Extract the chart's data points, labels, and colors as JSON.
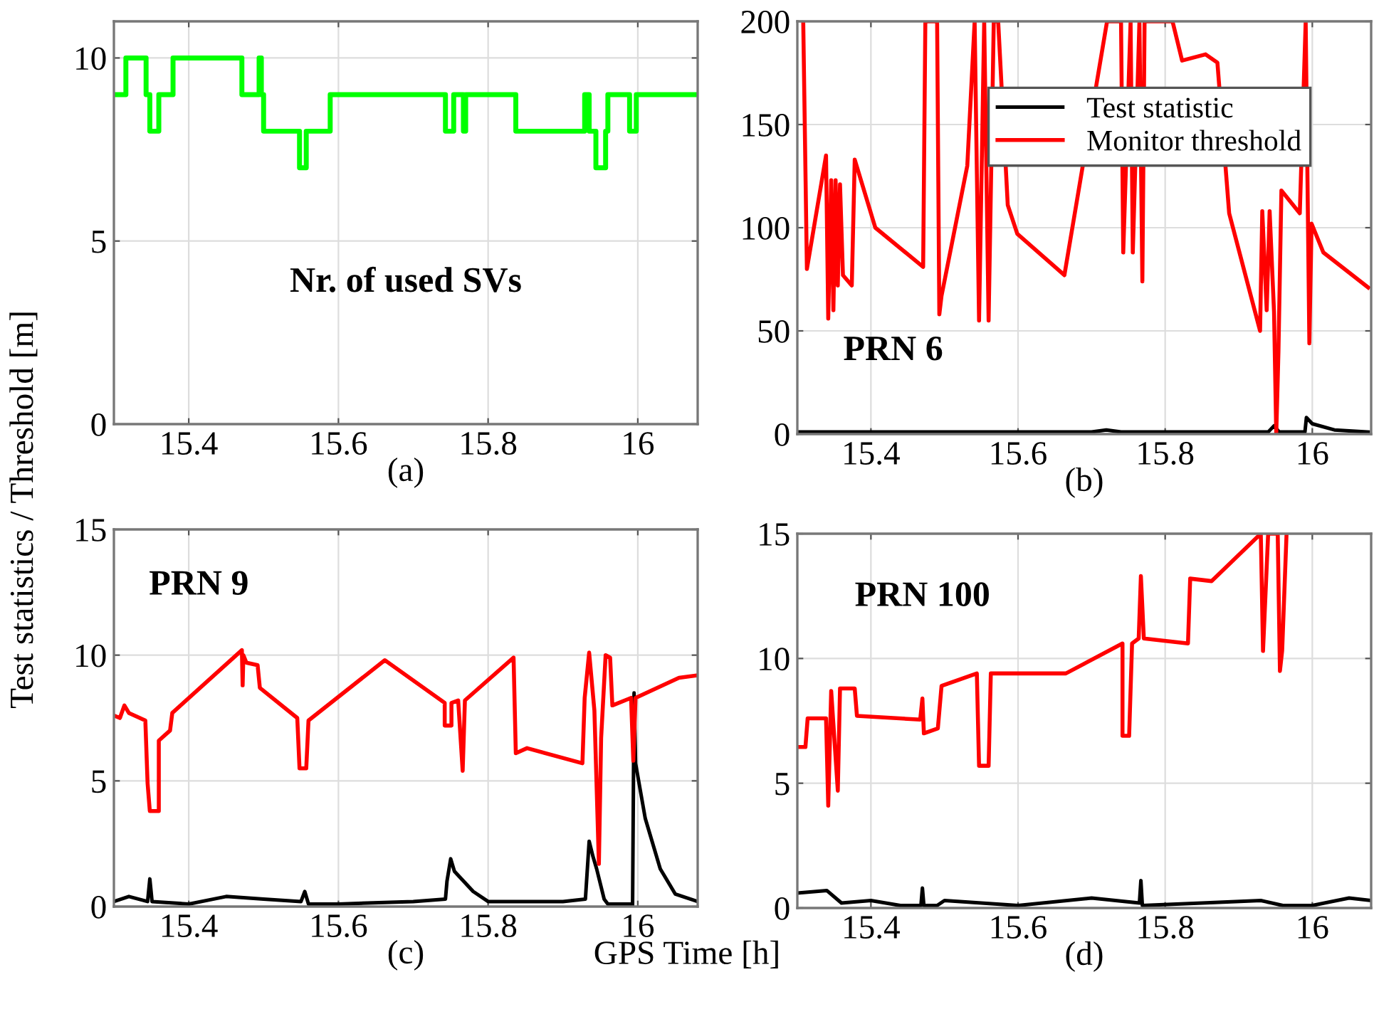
{
  "chart_data": [
    {
      "type": "line",
      "xlabel": "(a)",
      "annotations": [
        "Nr. of used SVs"
      ],
      "xlim": [
        15.3,
        16.08
      ],
      "xticks": [
        15.4,
        15.6,
        15.8,
        16
      ],
      "ylim": [
        0,
        11
      ],
      "yticks": [
        0,
        5,
        10
      ],
      "grid": true,
      "legend": false,
      "series": [
        {
          "color": "#00ff00",
          "x": [
            15.3,
            15.316,
            15.316,
            15.343,
            15.343,
            15.348,
            15.348,
            15.36,
            15.36,
            15.379,
            15.379,
            15.471,
            15.471,
            15.494,
            15.494,
            15.497,
            15.497,
            15.5,
            15.5,
            15.548,
            15.548,
            15.557,
            15.557,
            15.589,
            15.589,
            15.743,
            15.743,
            15.754,
            15.754,
            15.767,
            15.767,
            15.77,
            15.77,
            15.837,
            15.837,
            15.929,
            15.929,
            15.935,
            15.935,
            15.944,
            15.944,
            15.957,
            15.957,
            15.96,
            15.96,
            15.989,
            15.989,
            15.998,
            15.998,
            16.08
          ],
          "values": [
            9,
            9,
            10,
            10,
            9,
            9,
            8,
            8,
            9,
            9,
            10,
            10,
            9,
            9,
            10,
            10,
            9,
            9,
            8,
            8,
            7,
            7,
            8,
            8,
            9,
            9,
            8,
            8,
            9,
            9,
            8,
            8,
            9,
            9,
            8,
            8,
            9,
            9,
            8,
            8,
            7,
            7,
            8,
            8,
            9,
            9,
            8,
            8,
            9,
            9
          ]
        }
      ]
    },
    {
      "type": "line",
      "annotations": [
        "PRN 6"
      ],
      "xlabel": "(b)",
      "xlim": [
        15.3,
        16.08
      ],
      "xticks": [
        15.4,
        15.6,
        15.8,
        16
      ],
      "ylim": [
        0,
        200
      ],
      "yticks": [
        0,
        50,
        100,
        150,
        200
      ],
      "grid": true,
      "legend": "top right",
      "series": [
        {
          "name": "Test statistic",
          "color": "#000000",
          "x": [
            15.3,
            15.4,
            15.5,
            15.6,
            15.7,
            15.72,
            15.74,
            15.8,
            15.9,
            15.94,
            15.948,
            15.955,
            15.99,
            15.992,
            16.0,
            16.03,
            16.076
          ],
          "values": [
            1,
            1,
            1,
            1,
            1,
            2,
            1,
            1,
            1,
            1,
            4,
            1,
            1,
            8,
            5,
            2,
            1
          ]
        },
        {
          "name": "Monitor threshold",
          "color": "#ff0000",
          "x": [
            15.308,
            15.313,
            15.339,
            15.342,
            15.346,
            15.349,
            15.352,
            15.355,
            15.358,
            15.362,
            15.374,
            15.378,
            15.406,
            15.471,
            15.474,
            15.49,
            15.493,
            15.496,
            15.531,
            15.541,
            15.547,
            15.554,
            15.56,
            15.567,
            15.573,
            15.586,
            15.599,
            15.663,
            15.721,
            15.74,
            15.743,
            15.753,
            15.756,
            15.765,
            15.769,
            15.772,
            15.81,
            15.823,
            15.855,
            15.871,
            15.887,
            15.929,
            15.932,
            15.938,
            15.942,
            15.948,
            15.951,
            15.954,
            15.958,
            15.983,
            15.991,
            15.996,
            15.999,
            16.015,
            16.076
          ],
          "values": [
            200,
            80,
            135,
            56,
            123,
            60,
            123,
            72,
            121,
            77,
            72,
            133,
            100,
            81,
            200,
            200,
            58,
            67,
            130,
            200,
            55,
            200,
            55,
            200,
            200,
            111,
            97,
            77,
            200,
            200,
            88,
            200,
            88,
            200,
            74,
            200,
            200,
            181,
            184,
            180,
            107,
            50,
            108,
            60,
            108,
            59,
            0,
            40,
            118,
            107,
            200,
            44,
            102,
            88,
            71
          ]
        }
      ]
    },
    {
      "type": "line",
      "annotations": [
        "PRN 9",
        "GPS Time [h]"
      ],
      "xlabel": "(c)",
      "ylabel": "Test statistics / Threshold [m]",
      "xlim": [
        15.3,
        16.08
      ],
      "xticks": [
        15.4,
        15.6,
        15.8,
        16
      ],
      "ylim": [
        0,
        15
      ],
      "yticks": [
        0,
        5,
        10,
        15
      ],
      "grid": true,
      "legend": false,
      "series": [
        {
          "color": "#000000",
          "x": [
            15.3,
            15.32,
            15.345,
            15.348,
            15.351,
            15.4,
            15.45,
            15.5,
            15.55,
            15.555,
            15.56,
            15.6,
            15.7,
            15.743,
            15.745,
            15.75,
            15.755,
            15.78,
            15.8,
            15.9,
            15.93,
            15.935,
            15.94,
            15.945,
            15.955,
            15.96,
            15.99,
            15.993,
            15.995,
            15.997,
            16.01,
            16.03,
            16.05,
            16.08
          ],
          "values": [
            0.2,
            0.4,
            0.2,
            1.1,
            0.2,
            0.1,
            0.4,
            0.3,
            0.2,
            0.6,
            0.1,
            0.1,
            0.2,
            0.3,
            1.0,
            1.9,
            1.4,
            0.6,
            0.2,
            0.2,
            0.3,
            2.6,
            2.0,
            1.5,
            0.3,
            0.1,
            0.1,
            0.0,
            8.5,
            5.7,
            3.5,
            1.5,
            0.5,
            0.2
          ]
        },
        {
          "color": "#ff0000",
          "x": [
            15.3,
            15.308,
            15.314,
            15.32,
            15.342,
            15.345,
            15.348,
            15.36,
            15.36,
            15.375,
            15.378,
            15.471,
            15.472,
            15.473,
            15.477,
            15.492,
            15.495,
            15.545,
            15.548,
            15.557,
            15.56,
            15.662,
            15.742,
            15.742,
            15.751,
            15.751,
            15.76,
            15.766,
            15.769,
            15.834,
            15.837,
            15.852,
            15.926,
            15.929,
            15.935,
            15.942,
            15.948,
            15.951,
            15.957,
            15.963,
            15.966,
            15.991,
            15.994,
            15.997,
            16.055,
            16.08
          ],
          "values": [
            7.6,
            7.5,
            8.0,
            7.7,
            7.4,
            4.9,
            3.8,
            3.8,
            6.6,
            7.0,
            7.7,
            10.2,
            8.8,
            10.0,
            9.7,
            9.6,
            8.7,
            7.5,
            5.5,
            5.5,
            7.4,
            9.8,
            8.1,
            7.2,
            7.2,
            8.1,
            8.2,
            5.4,
            8.2,
            9.9,
            6.1,
            6.3,
            5.7,
            8.3,
            10.1,
            7.8,
            1.7,
            6.7,
            10.0,
            9.9,
            8.0,
            8.3,
            5.8,
            8.3,
            9.1,
            9.2
          ]
        }
      ]
    },
    {
      "type": "line",
      "annotations": [
        "PRN 100"
      ],
      "xlabel": "(d)",
      "xlim": [
        15.3,
        16.08
      ],
      "xticks": [
        15.4,
        15.6,
        15.8,
        16
      ],
      "ylim": [
        0,
        15
      ],
      "yticks": [
        0,
        5,
        10,
        15
      ],
      "grid": true,
      "legend": false,
      "series": [
        {
          "color": "#000000",
          "x": [
            15.3,
            15.34,
            15.36,
            15.4,
            15.44,
            15.468,
            15.47,
            15.472,
            15.49,
            15.5,
            15.6,
            15.7,
            15.765,
            15.767,
            15.769,
            15.85,
            15.93,
            15.96,
            16.0,
            16.05,
            16.08
          ],
          "values": [
            0.6,
            0.7,
            0.2,
            0.3,
            0.1,
            0.1,
            0.8,
            0.1,
            0.1,
            0.3,
            0.1,
            0.4,
            0.2,
            1.1,
            0.1,
            0.2,
            0.3,
            0.1,
            0.1,
            0.4,
            0.3
          ]
        },
        {
          "color": "#ff0000",
          "x": [
            15.3,
            15.311,
            15.314,
            15.339,
            15.342,
            15.346,
            15.355,
            15.358,
            15.378,
            15.381,
            15.467,
            15.47,
            15.472,
            15.491,
            15.496,
            15.544,
            15.547,
            15.56,
            15.563,
            15.665,
            15.742,
            15.742,
            15.751,
            15.755,
            15.764,
            15.767,
            15.771,
            15.831,
            15.834,
            15.863,
            15.93,
            15.933,
            15.94,
            15.953,
            15.956,
            15.959,
            15.965
          ],
          "values": [
            6.45,
            6.45,
            7.6,
            7.6,
            4.1,
            8.7,
            4.7,
            8.8,
            8.8,
            7.7,
            7.55,
            8.4,
            7.0,
            7.2,
            8.9,
            9.4,
            5.7,
            5.7,
            9.4,
            9.4,
            10.6,
            6.9,
            6.9,
            10.6,
            10.8,
            13.3,
            10.8,
            10.6,
            13.2,
            13.1,
            15,
            10.3,
            15,
            15,
            9.5,
            10.3,
            15
          ]
        }
      ]
    }
  ]
}
